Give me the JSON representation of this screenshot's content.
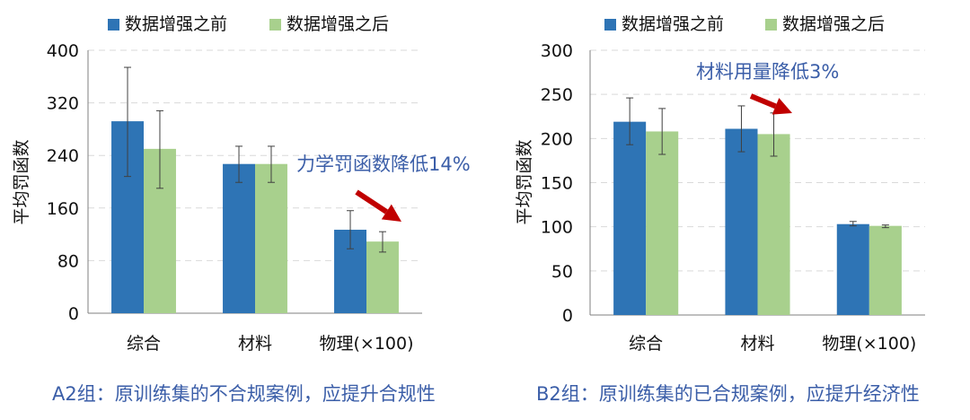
{
  "colors": {
    "before": "#2e74b5",
    "after": "#a8d08d",
    "annotation": "#3b5ea8",
    "arrow": "#c00000",
    "grid": "#d9d9d9"
  },
  "chart_data": [
    {
      "type": "bar",
      "categories": [
        "综合",
        "材料",
        "物理(×100)"
      ],
      "series": [
        {
          "name": "数据增强之前",
          "values": [
            292,
            227,
            127
          ],
          "err_low": [
            208,
            199,
            98
          ],
          "err_high": [
            374,
            254,
            156
          ]
        },
        {
          "name": "数据增强之后",
          "values": [
            250,
            227,
            109
          ],
          "err_low": [
            190,
            199,
            93
          ],
          "err_high": [
            308,
            254,
            124
          ]
        }
      ],
      "ylabel": "平均罚函数",
      "ylim": [
        0,
        400
      ],
      "yticks": [
        "0",
        "80",
        "160",
        "240",
        "320",
        "400"
      ],
      "ytick_values": [
        0,
        80,
        160,
        240,
        320,
        400
      ],
      "grid": true,
      "legend_position": "top",
      "annotation": "力学罚函数降低14%",
      "caption": "A2组：原训练集的不合规案例，应提升合规性"
    },
    {
      "type": "bar",
      "categories": [
        "综合",
        "材料",
        "物理(×100)"
      ],
      "series": [
        {
          "name": "数据增强之前",
          "values": [
            219,
            211,
            103
          ],
          "err_low": [
            193,
            185,
            101
          ],
          "err_high": [
            246,
            237,
            106
          ]
        },
        {
          "name": "数据增强之后",
          "values": [
            208,
            205,
            101
          ],
          "err_low": [
            182,
            180,
            99
          ],
          "err_high": [
            234,
            229,
            102
          ]
        }
      ],
      "ylabel": "平均罚函数",
      "ylim": [
        0,
        300
      ],
      "yticks": [
        "0",
        "50",
        "100",
        "150",
        "200",
        "250",
        "300"
      ],
      "ytick_values": [
        0,
        50,
        100,
        150,
        200,
        250,
        300
      ],
      "grid": true,
      "legend_position": "top",
      "annotation": "材料用量降低3%",
      "caption": "B2组：原训练集的已合规案例，应提升经济性"
    }
  ]
}
